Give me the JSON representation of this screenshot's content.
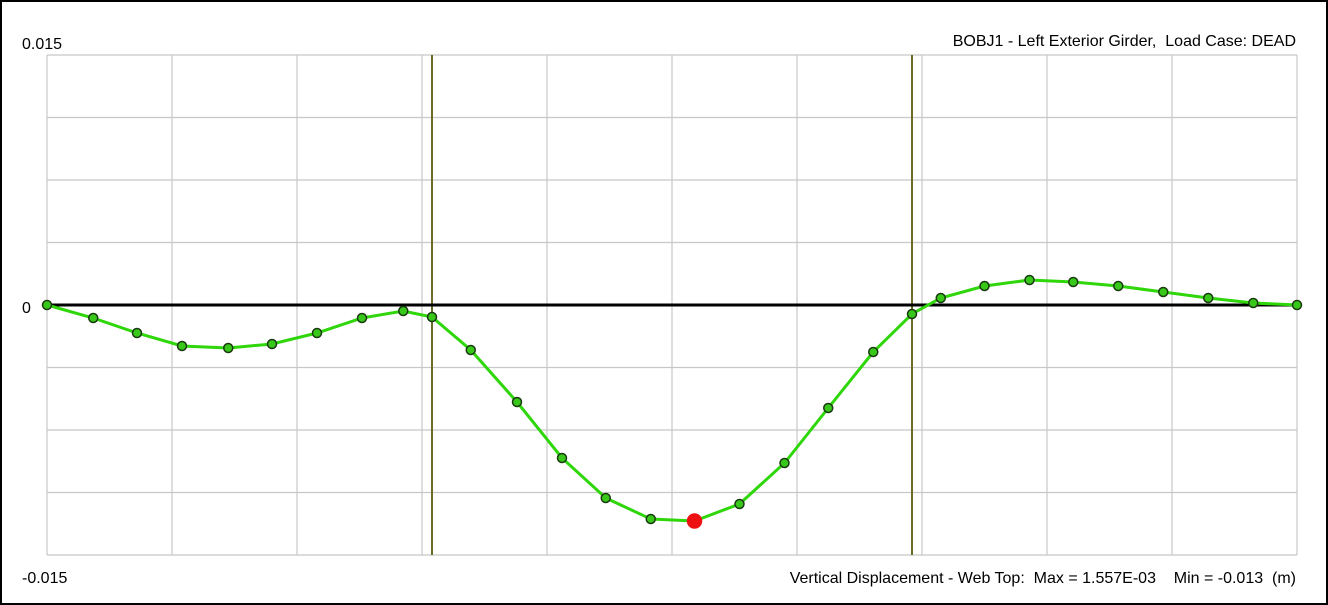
{
  "chart_data": {
    "type": "line",
    "title": "BOBJ1 - Left Exterior Girder,  Load Case: DEAD",
    "footer": "Vertical Displacement - Web Top:  Max = 1.557E-03    Min = -0.013  (m)",
    "x": [
      0,
      0.37,
      0.72,
      1.08,
      1.45,
      1.8,
      2.16,
      2.52,
      2.85,
      3.08,
      3.39,
      3.76,
      4.12,
      4.47,
      4.83,
      5.18,
      5.54,
      5.9,
      6.25,
      6.61,
      6.92,
      7.15,
      7.5,
      7.86,
      8.21,
      8.57,
      8.93,
      9.29,
      9.65,
      10
    ],
    "series": [
      {
        "name": "Vertical Displacement - Web Top",
        "color": "#2ed60a",
        "marker_color": "#38c81a",
        "values": [
          0,
          -0.00078,
          -0.00168,
          -0.00246,
          -0.00258,
          -0.00234,
          -0.00168,
          -0.00078,
          -0.00036,
          -0.00072,
          -0.0027,
          -0.00582,
          -0.00918,
          -0.01158,
          -0.01284,
          -0.01296,
          -0.01194,
          -0.00948,
          -0.00618,
          -0.00282,
          -0.00054,
          0.00042,
          0.00114,
          0.0015,
          0.00138,
          0.00114,
          0.00078,
          0.00042,
          0.00012,
          0
        ]
      }
    ],
    "highlight_index": 15,
    "highlight_color": "#ee1111",
    "supports": [
      3.08,
      6.92
    ],
    "support_color": "#6b6b2a",
    "xlim": [
      0,
      10
    ],
    "xgrid": [
      0,
      1,
      2,
      3,
      4,
      5,
      6,
      7,
      8,
      9,
      10
    ],
    "ylim": [
      -0.015,
      0.015
    ],
    "yticks": [
      0.015,
      0,
      -0.015
    ],
    "ygrid": [
      -0.015,
      -0.01125,
      -0.0075,
      -0.00375,
      0,
      0.00375,
      0.0075,
      0.01125,
      0.015
    ],
    "grid": true
  }
}
